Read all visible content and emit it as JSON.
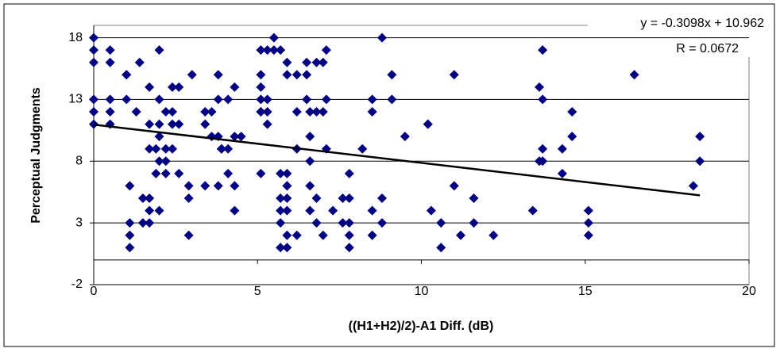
{
  "chart_data": {
    "type": "scatter",
    "xlabel": "((H1+H2)/2)-A1 Diff. (dB)",
    "ylabel": "Perceptual Judgments",
    "annotations": [
      "y = -0.3098x + 10.962",
      "R = 0.0672"
    ],
    "xlim": [
      0,
      20
    ],
    "xticks": [
      0,
      5,
      10,
      15,
      20
    ],
    "ylim": [
      -2,
      19
    ],
    "yticks": [
      -2,
      3,
      8,
      13,
      18
    ],
    "grid": true,
    "color": "#000080",
    "x": [
      0,
      0,
      0,
      0,
      0,
      0,
      0.5,
      0.5,
      0.5,
      0.5,
      0.5,
      1,
      1,
      1,
      1.1,
      1.1,
      1.1,
      1.1,
      1.3,
      1.4,
      1.5,
      1.5,
      1.7,
      1.7,
      1.7,
      1.7,
      1.7,
      1.7,
      1.9,
      1.9,
      2,
      2,
      2,
      2,
      2,
      2,
      2.2,
      2.2,
      2.2,
      2.2,
      2.4,
      2.4,
      2.4,
      2.4,
      2.6,
      2.6,
      2.6,
      2.9,
      2.9,
      2.9,
      3,
      3.4,
      3.4,
      3.4,
      3.6,
      3.6,
      3.8,
      3.8,
      3.8,
      3.8,
      3.9,
      3.9,
      3.9,
      4.1,
      4.1,
      4.1,
      4.3,
      4.3,
      4.3,
      4.3,
      4.5,
      5.1,
      5.1,
      5.1,
      5.1,
      5.1,
      5.1,
      5.1,
      5.3,
      5.3,
      5.3,
      5.3,
      5.5,
      5.5,
      5.7,
      5.7,
      5.7,
      5.7,
      5.7,
      5.7,
      5.9,
      5.9,
      5.9,
      5.9,
      5.9,
      5.9,
      5.9,
      5.9,
      5.9,
      6.2,
      6.2,
      6.2,
      6.2,
      6.5,
      6.5,
      6.5,
      6.6,
      6.6,
      6.6,
      6.6,
      6.6,
      6.8,
      6.8,
      6.8,
      6.8,
      7,
      7,
      7,
      7.1,
      7.1,
      7.1,
      7.3,
      7.6,
      7.6,
      7.8,
      7.8,
      7.8,
      7.8,
      7.8,
      8.2,
      8.5,
      8.5,
      8.5,
      8.5,
      8.8,
      8.8,
      8.8,
      9.1,
      9.1,
      9.5,
      10.2,
      10.2,
      10.3,
      10.6,
      10.6,
      11,
      11,
      11.2,
      11.6,
      11.6,
      12.2,
      13.4,
      13.6,
      13.6,
      13.7,
      13.7,
      13.7,
      13.7,
      14.3,
      14.3,
      14.6,
      14.6,
      15.1,
      15.1,
      15.1,
      16.5,
      18.3,
      18.5,
      18.5
    ],
    "values": [
      18,
      17,
      16,
      13,
      12,
      11,
      17,
      16,
      13,
      12,
      11,
      15,
      15,
      13,
      6,
      2,
      1,
      3,
      12,
      16,
      5,
      3,
      14,
      11,
      9,
      5,
      3,
      4,
      9,
      7,
      17,
      13,
      10,
      4,
      11,
      8,
      12,
      8,
      9,
      7,
      14,
      11,
      12,
      9,
      14,
      11,
      7,
      5,
      6,
      2,
      15,
      6,
      11,
      12,
      12,
      10,
      13,
      15,
      10,
      6,
      9,
      9,
      9,
      13,
      9,
      7,
      14,
      6,
      4,
      10,
      10,
      17,
      15,
      14,
      12,
      13,
      12,
      7,
      17,
      13,
      11,
      12,
      17,
      18,
      17,
      7,
      5,
      4,
      3,
      1,
      16,
      15,
      7,
      6,
      6,
      5,
      4,
      2,
      1,
      15,
      12,
      9,
      2,
      13,
      15,
      16,
      12,
      10,
      8,
      6,
      4,
      16,
      12,
      5,
      3,
      16,
      12,
      2,
      17,
      13,
      9,
      4,
      5,
      3,
      5,
      7,
      3,
      1,
      2,
      9,
      13,
      12,
      4,
      2,
      18,
      5,
      3,
      15,
      13,
      10,
      11,
      11,
      4,
      3,
      1,
      15,
      6,
      2,
      3,
      5,
      2,
      4,
      14,
      8,
      17,
      13,
      9,
      8,
      9,
      7,
      12,
      10,
      4,
      3,
      2,
      15,
      6,
      10,
      8
    ],
    "trendline": {
      "x": [
        0,
        18.5
      ],
      "values": [
        10.962,
        5.231
      ]
    }
  }
}
